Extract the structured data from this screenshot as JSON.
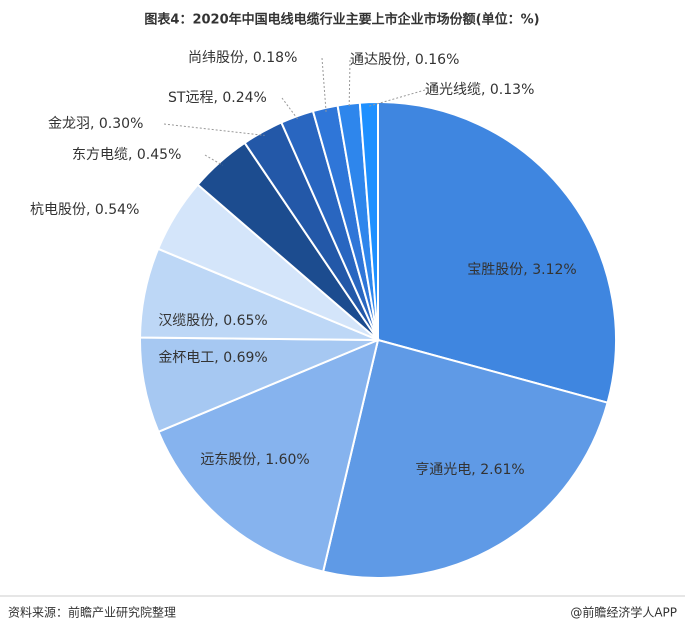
{
  "chart_data": {
    "type": "pie",
    "title": "图表4：2020年中国电线电缆行业主要上市企业市场份额(单位：%)",
    "values": [
      3.12,
      2.61,
      1.6,
      0.69,
      0.65,
      0.54,
      0.45,
      0.3,
      0.24,
      0.18,
      0.16,
      0.13
    ],
    "value_labels": [
      "宝胜股份, 3.12%",
      "亨通光电, 2.61%",
      "远东股份, 1.60%",
      "金杯电工, 0.69%",
      "汉缆股份, 0.65%",
      "杭电股份, 0.54%",
      "东方电缆, 0.45%",
      "金龙羽, 0.30%",
      "ST远程, 0.24%",
      "尚纬股份, 0.18%",
      "通达股份, 0.16%",
      "通光线缆, 0.13%"
    ],
    "colors": [
      "#3f86e0",
      "#5f9ae6",
      "#86b3ee",
      "#a6c8f2",
      "#bdd7f6",
      "#d4e5fa",
      "#1c4c8f",
      "#2358a8",
      "#2966c0",
      "#2f76d8",
      "#2e86ec",
      "#1e90ff"
    ],
    "source": "资料来源：前瞻产业研究院整理",
    "credit": "@前瞻经济学人APP"
  }
}
